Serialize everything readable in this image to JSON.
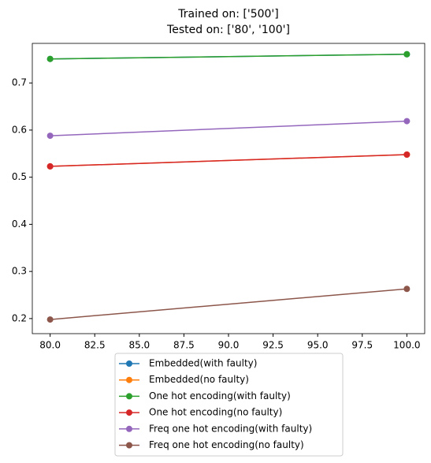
{
  "chart_data": {
    "type": "line",
    "title": [
      "Trained on: ['500']",
      "Tested on: ['80', '100']"
    ],
    "x": [
      80,
      100
    ],
    "series": [
      {
        "name": "Embedded(with faulty)",
        "color": "#1f77b4",
        "values": [
          0.751,
          0.761
        ]
      },
      {
        "name": "Embedded(no faulty)",
        "color": "#ff7f0e",
        "values": [
          0.523,
          0.548
        ]
      },
      {
        "name": "One hot encoding(with faulty)",
        "color": "#2ca02c",
        "values": [
          0.751,
          0.761
        ]
      },
      {
        "name": "One hot encoding(no faulty)",
        "color": "#d62728",
        "values": [
          0.523,
          0.548
        ]
      },
      {
        "name": "Freq one hot encoding(with faulty)",
        "color": "#9467bd",
        "values": [
          0.588,
          0.619
        ]
      },
      {
        "name": "Freq one hot encoding(no faulty)",
        "color": "#8c564b",
        "values": [
          0.198,
          0.263
        ]
      }
    ],
    "xlim": [
      79,
      101
    ],
    "xticks": [
      {
        "value": 80,
        "label": "80.0"
      },
      {
        "value": 82.5,
        "label": "82.5"
      },
      {
        "value": 85,
        "label": "85.0"
      },
      {
        "value": 87.5,
        "label": "87.5"
      },
      {
        "value": 90,
        "label": "90.0"
      },
      {
        "value": 92.5,
        "label": "92.5"
      },
      {
        "value": 95,
        "label": "95.0"
      },
      {
        "value": 97.5,
        "label": "97.5"
      },
      {
        "value": 100,
        "label": "100.0"
      }
    ],
    "ylim": [
      0.168,
      0.784
    ],
    "yticks": [
      0.2,
      0.3,
      0.4,
      0.5,
      0.6,
      0.7
    ],
    "legend": "lower center"
  }
}
